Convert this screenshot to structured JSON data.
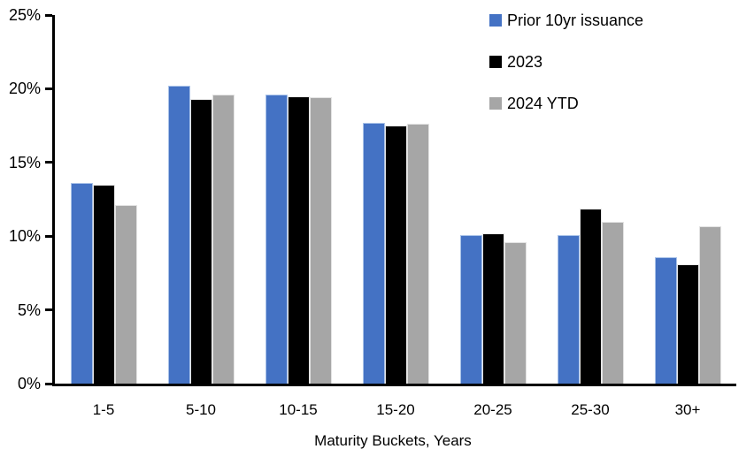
{
  "chart_data": {
    "type": "bar",
    "categories": [
      "1-5",
      "5-10",
      "10-15",
      "15-20",
      "20-25",
      "25-30",
      "30+"
    ],
    "series": [
      {
        "name": "Prior 10yr issuance",
        "color": "#4472C4",
        "edge": "#A9C2E8",
        "values": [
          13.6,
          20.2,
          19.6,
          17.7,
          10.1,
          10.1,
          8.6
        ]
      },
      {
        "name": "2023",
        "color": "#000000",
        "edge": "#E7E7E7",
        "values": [
          13.5,
          19.3,
          19.5,
          17.5,
          10.2,
          11.9,
          8.1
        ]
      },
      {
        "name": "2024 YTD",
        "color": "#A6A6A6",
        "edge": "#E2E2E2",
        "values": [
          12.1,
          19.6,
          19.4,
          17.6,
          9.6,
          11.0,
          10.7
        ]
      }
    ],
    "title": "",
    "xlabel": "Maturity Buckets, Years",
    "ylabel": "",
    "ylim": [
      0,
      25
    ],
    "ytick_step": 5,
    "y_tick_labels": [
      "25%",
      "20%",
      "15%",
      "10%",
      "5%",
      "0%"
    ],
    "grid": false,
    "legend_position": "top-right",
    "background": "#ffffff",
    "axis_color": "#000000"
  }
}
